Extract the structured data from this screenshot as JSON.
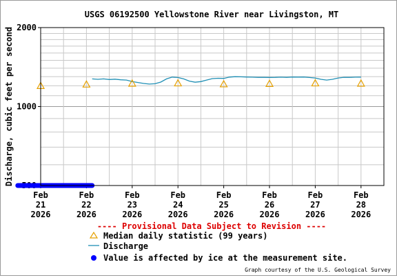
{
  "chart_data": {
    "type": "line",
    "title": "USGS 06192500 Yellowstone River near Livingston, MT",
    "ylabel": "Discharge, cubic feet per second",
    "y_scale": "log",
    "ylim": [
      500,
      2000
    ],
    "y_ticks": [
      "2000",
      "1000",
      "500"
    ],
    "xlim": [
      "2026-02-21T00:00",
      "2026-02-28T12:00"
    ],
    "x_ticks": [
      {
        "month": "Feb",
        "day": "21",
        "year": "2026",
        "date": "2026-02-21"
      },
      {
        "month": "Feb",
        "day": "22",
        "year": "2026",
        "date": "2026-02-22"
      },
      {
        "month": "Feb",
        "day": "23",
        "year": "2026",
        "date": "2026-02-23"
      },
      {
        "month": "Feb",
        "day": "24",
        "year": "2026",
        "date": "2026-02-24"
      },
      {
        "month": "Feb",
        "day": "25",
        "year": "2026",
        "date": "2026-02-25"
      },
      {
        "month": "Feb",
        "day": "26",
        "year": "2026",
        "date": "2026-02-26"
      },
      {
        "month": "Feb",
        "day": "27",
        "year": "2026",
        "date": "2026-02-27"
      },
      {
        "month": "Feb",
        "day": "28",
        "year": "2026",
        "date": "2026-02-28"
      }
    ],
    "grid": true,
    "series": [
      {
        "name": "Discharge",
        "color": "#1f8fb5",
        "points": [
          [
            "2026-02-22T03:00",
            1275
          ],
          [
            "2026-02-22T06:00",
            1270
          ],
          [
            "2026-02-22T09:00",
            1275
          ],
          [
            "2026-02-22T12:00",
            1268
          ],
          [
            "2026-02-22T15:00",
            1272
          ],
          [
            "2026-02-22T18:00",
            1265
          ],
          [
            "2026-02-22T21:00",
            1262
          ],
          [
            "2026-02-23T00:00",
            1245
          ],
          [
            "2026-02-23T03:00",
            1235
          ],
          [
            "2026-02-23T06:00",
            1225
          ],
          [
            "2026-02-23T09:00",
            1218
          ],
          [
            "2026-02-23T12:00",
            1222
          ],
          [
            "2026-02-23T15:00",
            1240
          ],
          [
            "2026-02-23T18:00",
            1275
          ],
          [
            "2026-02-23T21:00",
            1295
          ],
          [
            "2026-02-24T00:00",
            1290
          ],
          [
            "2026-02-24T03:00",
            1275
          ],
          [
            "2026-02-24T06:00",
            1250
          ],
          [
            "2026-02-24T09:00",
            1238
          ],
          [
            "2026-02-24T12:00",
            1245
          ],
          [
            "2026-02-24T15:00",
            1262
          ],
          [
            "2026-02-24T18:00",
            1278
          ],
          [
            "2026-02-24T21:00",
            1282
          ],
          [
            "2026-02-25T00:00",
            1280
          ],
          [
            "2026-02-25T03:00",
            1295
          ],
          [
            "2026-02-25T06:00",
            1300
          ],
          [
            "2026-02-25T09:00",
            1298
          ],
          [
            "2026-02-25T12:00",
            1296
          ],
          [
            "2026-02-25T15:00",
            1294
          ],
          [
            "2026-02-25T18:00",
            1292
          ],
          [
            "2026-02-25T21:00",
            1292
          ],
          [
            "2026-02-26T00:00",
            1291
          ],
          [
            "2026-02-26T03:00",
            1292
          ],
          [
            "2026-02-26T06:00",
            1294
          ],
          [
            "2026-02-26T09:00",
            1292
          ],
          [
            "2026-02-26T12:00",
            1296
          ],
          [
            "2026-02-26T15:00",
            1295
          ],
          [
            "2026-02-26T18:00",
            1296
          ],
          [
            "2026-02-26T21:00",
            1290
          ],
          [
            "2026-02-27T00:00",
            1285
          ],
          [
            "2026-02-27T03:00",
            1270
          ],
          [
            "2026-02-27T06:00",
            1262
          ],
          [
            "2026-02-27T09:00",
            1270
          ],
          [
            "2026-02-27T12:00",
            1285
          ],
          [
            "2026-02-27T15:00",
            1293
          ],
          [
            "2026-02-27T18:00",
            1292
          ],
          [
            "2026-02-27T21:00",
            1294
          ],
          [
            "2026-02-28T00:00",
            1295
          ]
        ]
      },
      {
        "name": "Median daily statistic (99 years)",
        "color": "#e6a000",
        "marker": "triangle-open",
        "points": [
          [
            "2026-02-21T00:00",
            1200
          ],
          [
            "2026-02-22T00:00",
            1215
          ],
          [
            "2026-02-23T00:00",
            1225
          ],
          [
            "2026-02-24T00:00",
            1228
          ],
          [
            "2026-02-25T00:00",
            1218
          ],
          [
            "2026-02-26T00:00",
            1222
          ],
          [
            "2026-02-27T00:00",
            1228
          ],
          [
            "2026-02-28T00:00",
            1225
          ]
        ]
      },
      {
        "name": "Value is affected by ice at the measurement site.",
        "color": "#0000ff",
        "marker": "dot",
        "x_range": [
          "2026-02-20T12:00",
          "2026-02-22T03:00"
        ],
        "value": 500
      }
    ]
  },
  "provisional": "---- Provisional Data Subject to Revision ----",
  "provisional_color": "#dd0000",
  "legend": {
    "median": "Median daily statistic (99 years)",
    "discharge": "Discharge",
    "ice": "Value is affected by ice at the measurement site."
  },
  "credit": "Graph courtesy of the U.S. Geological Survey"
}
